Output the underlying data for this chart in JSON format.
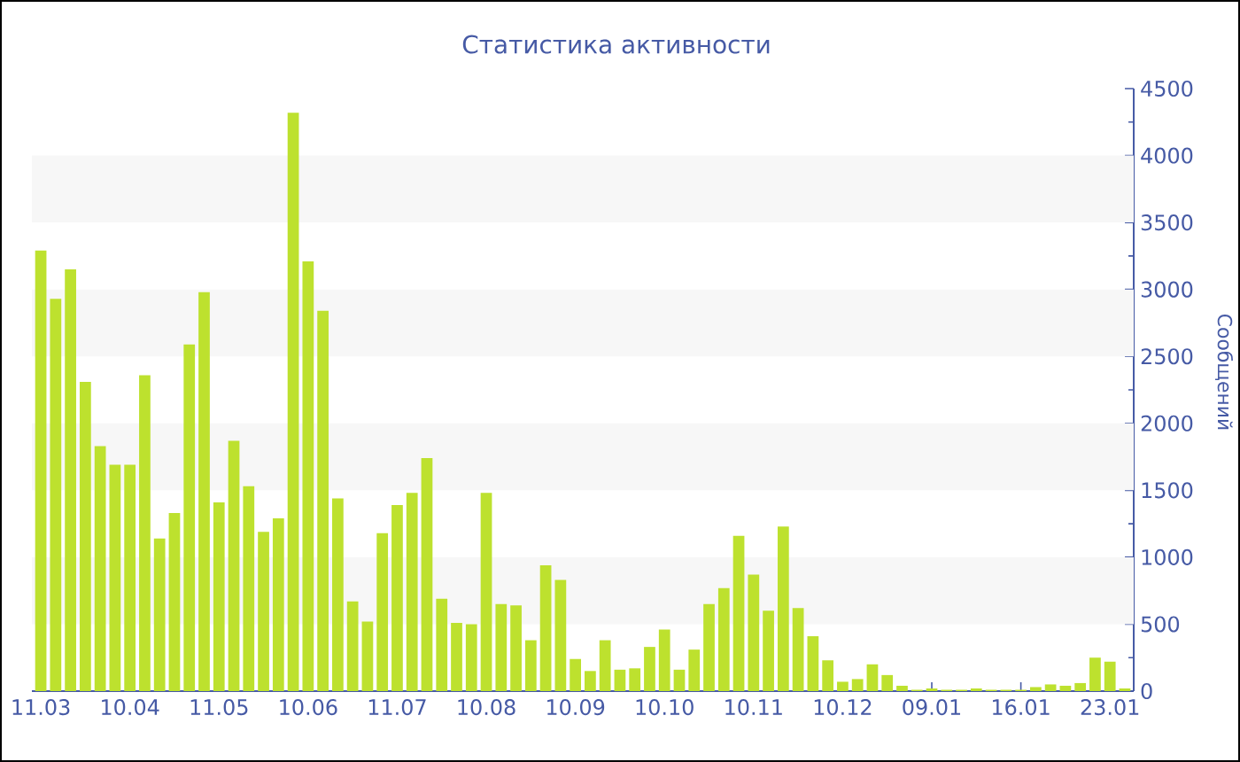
{
  "chart_data": {
    "type": "bar",
    "title": "Статистика активности",
    "ylabel": "Сообщений",
    "categories": [
      "11.03",
      null,
      null,
      null,
      null,
      null,
      "10.04",
      null,
      null,
      null,
      null,
      null,
      "11.05",
      null,
      null,
      null,
      null,
      null,
      "10.06",
      null,
      null,
      null,
      null,
      null,
      "11.07",
      null,
      null,
      null,
      null,
      null,
      "10.08",
      null,
      null,
      null,
      null,
      null,
      "10.09",
      null,
      null,
      null,
      null,
      null,
      "10.10",
      null,
      null,
      null,
      null,
      null,
      "10.11",
      null,
      null,
      null,
      null,
      null,
      "10.12",
      null,
      null,
      null,
      null,
      null,
      "09.01",
      null,
      null,
      null,
      null,
      null,
      "16.01",
      null,
      null,
      null,
      null,
      null,
      "23.01",
      null
    ],
    "values": [
      3290,
      2930,
      3150,
      2310,
      1830,
      1690,
      1690,
      2360,
      1140,
      1330,
      2590,
      2980,
      1410,
      1870,
      1530,
      1190,
      1290,
      4320,
      3210,
      2840,
      1440,
      670,
      520,
      1180,
      1390,
      1480,
      1740,
      690,
      510,
      500,
      1480,
      650,
      640,
      380,
      940,
      830,
      240,
      150,
      380,
      160,
      170,
      330,
      460,
      160,
      310,
      650,
      770,
      1160,
      870,
      600,
      1230,
      620,
      410,
      230,
      70,
      90,
      200,
      120,
      40,
      10,
      20,
      10,
      10,
      20,
      10,
      10,
      10,
      30,
      50,
      40,
      60,
      250,
      220,
      20
    ],
    "color": "#bde12e",
    "ylim": [
      0,
      4500
    ],
    "yticks": [
      0,
      {
        "value": 250,
        "label": null
      },
      500,
      {
        "value": 750,
        "label": null
      },
      1000,
      {
        "value": 1250,
        "label": null
      },
      1500,
      {
        "value": 1750,
        "label": null
      },
      2000,
      {
        "value": 2250,
        "label": null
      },
      2500,
      {
        "value": 2750,
        "label": null
      },
      3000,
      {
        "value": 3250,
        "label": null
      },
      3500,
      {
        "value": 3750,
        "label": null
      },
      4000,
      {
        "value": 4250,
        "label": null
      },
      4500
    ],
    "bands": [
      {
        "axis": "y",
        "from": 500,
        "to": 1000,
        "color": "#f7f7f7"
      },
      {
        "axis": "y",
        "from": 1500,
        "to": 2000,
        "color": "#f7f7f7"
      },
      {
        "axis": "y",
        "from": 2500,
        "to": 3000,
        "color": "#f7f7f7"
      },
      {
        "axis": "y",
        "from": 3500,
        "to": 4000,
        "color": "#f7f7f7"
      }
    ]
  }
}
